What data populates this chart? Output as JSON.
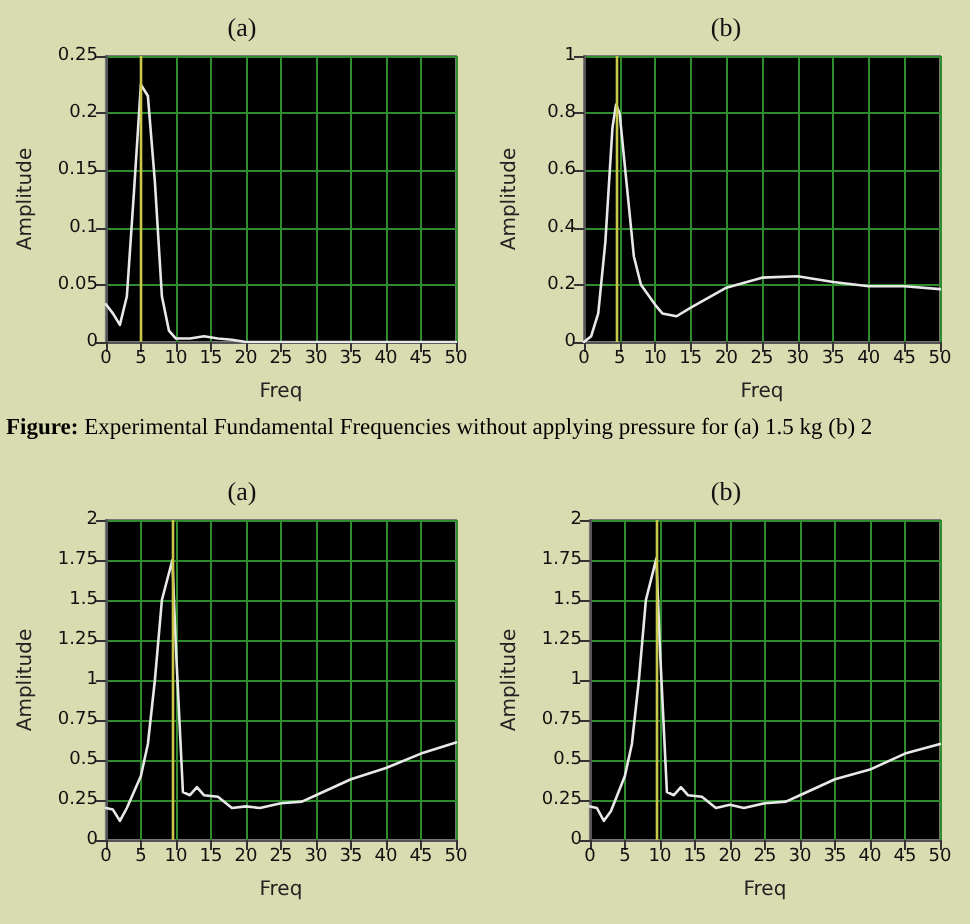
{
  "chart_data": [
    {
      "type": "line",
      "title": "(a)",
      "xlabel": "Freq",
      "ylabel": "Amplitude",
      "xlim": [
        0,
        50
      ],
      "ylim": [
        0,
        0.25
      ],
      "xticks": [
        0,
        5,
        10,
        15,
        20,
        25,
        30,
        35,
        40,
        45,
        50
      ],
      "yticks": [
        0,
        0.05,
        0.1,
        0.15,
        0.2,
        0.25
      ],
      "grid": true,
      "marker": "none",
      "series": [
        {
          "color": "#e8e8e8",
          "x": [
            0,
            1,
            2,
            3,
            4,
            5,
            6,
            7,
            8,
            9,
            10,
            12,
            14,
            16,
            18,
            20,
            25,
            30,
            35,
            40,
            45,
            50
          ],
          "values": [
            0.033,
            0.025,
            0.015,
            0.04,
            0.13,
            0.225,
            0.215,
            0.14,
            0.04,
            0.01,
            0.003,
            0.003,
            0.005,
            0.003,
            0.002,
            0,
            0,
            0,
            0,
            0,
            0,
            0
          ]
        }
      ],
      "ref_lines": [
        {
          "axis": "x",
          "value": 5,
          "color": "#c8c84a"
        }
      ],
      "annotations": [
        "Figure: Experimental Fundamental Frequencies without applying pressure for (a) 1.5 kg (b) 2"
      ]
    },
    {
      "type": "line",
      "title": "(b)",
      "xlabel": "Freq",
      "ylabel": "Amplitude",
      "xlim": [
        0,
        50
      ],
      "ylim": [
        0,
        1
      ],
      "xticks": [
        0,
        5,
        10,
        15,
        20,
        25,
        30,
        35,
        40,
        45,
        50
      ],
      "yticks": [
        0,
        0.2,
        0.4,
        0.6,
        0.8,
        1
      ],
      "grid": true,
      "marker": "none",
      "series": [
        {
          "color": "#e8e8e8",
          "x": [
            0,
            1,
            2,
            3,
            4,
            4.5,
            5,
            6,
            7,
            8,
            10,
            11,
            13,
            15,
            20,
            25,
            30,
            35,
            40,
            45,
            50
          ],
          "values": [
            0,
            0.02,
            0.1,
            0.35,
            0.75,
            0.83,
            0.8,
            0.55,
            0.3,
            0.2,
            0.13,
            0.1,
            0.09,
            0.12,
            0.19,
            0.225,
            0.23,
            0.21,
            0.195,
            0.195,
            0.185
          ]
        }
      ],
      "ref_lines": [
        {
          "axis": "x",
          "value": 4.5,
          "color": "#c8c84a"
        }
      ]
    },
    {
      "type": "line",
      "title": "(a)",
      "xlabel": "Freq",
      "ylabel": "Amplitude",
      "xlim": [
        0,
        50
      ],
      "ylim": [
        0,
        2
      ],
      "xticks": [
        0,
        5,
        10,
        15,
        20,
        25,
        30,
        35,
        40,
        45,
        50
      ],
      "yticks": [
        0,
        0.25,
        0.5,
        0.75,
        1,
        1.25,
        1.5,
        1.75,
        2
      ],
      "grid": true,
      "marker": "none",
      "series": [
        {
          "color": "#e8e8e8",
          "x": [
            0,
            1,
            2,
            3,
            5,
            6,
            7,
            8,
            9.5,
            10,
            11,
            12,
            13,
            14,
            16,
            18,
            20,
            22,
            25,
            28,
            30,
            35,
            40,
            45,
            50
          ],
          "values": [
            0.2,
            0.19,
            0.12,
            0.2,
            0.4,
            0.6,
            1,
            1.5,
            1.75,
            1.2,
            0.3,
            0.28,
            0.33,
            0.28,
            0.27,
            0.2,
            0.21,
            0.2,
            0.23,
            0.24,
            0.28,
            0.38,
            0.45,
            0.54,
            0.61
          ]
        }
      ],
      "ref_lines": [
        {
          "axis": "x",
          "value": 9.5,
          "color": "#c8c84a"
        }
      ]
    },
    {
      "type": "line",
      "title": "(b)",
      "xlabel": "Freq",
      "ylabel": "Amplitude",
      "xlim": [
        0,
        50
      ],
      "ylim": [
        0,
        2
      ],
      "xticks": [
        0,
        5,
        10,
        15,
        20,
        25,
        30,
        35,
        40,
        45,
        50
      ],
      "yticks": [
        0,
        0.25,
        0.5,
        0.75,
        1,
        1.25,
        1.5,
        1.75,
        2
      ],
      "grid": true,
      "marker": "none",
      "series": [
        {
          "color": "#e8e8e8",
          "x": [
            0,
            1,
            2,
            3,
            5,
            6,
            7,
            8,
            9.5,
            10,
            11,
            12,
            13,
            14,
            16,
            18,
            20,
            22,
            25,
            28,
            30,
            35,
            40,
            45,
            50
          ],
          "values": [
            0.21,
            0.2,
            0.12,
            0.18,
            0.4,
            0.6,
            1,
            1.5,
            1.76,
            1.2,
            0.3,
            0.28,
            0.33,
            0.28,
            0.27,
            0.2,
            0.22,
            0.2,
            0.23,
            0.24,
            0.28,
            0.38,
            0.44,
            0.54,
            0.6
          ]
        }
      ],
      "ref_lines": [
        {
          "axis": "x",
          "value": 9.5,
          "color": "#c8c84a"
        }
      ]
    }
  ]
}
